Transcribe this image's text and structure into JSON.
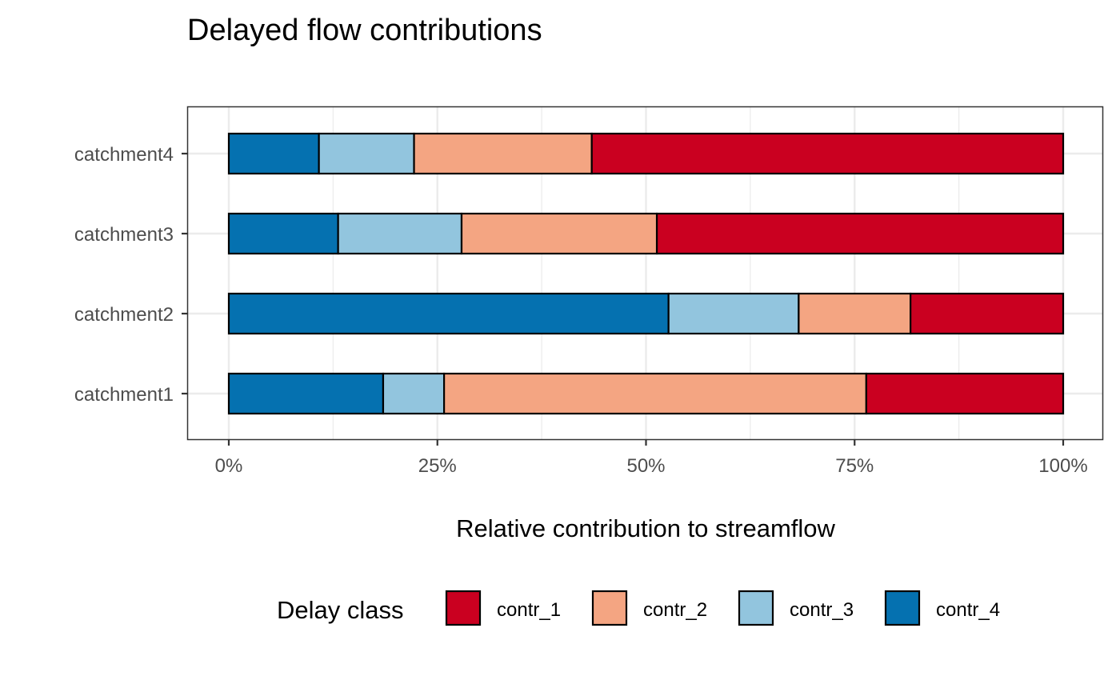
{
  "chart_data": {
    "type": "bar",
    "orientation": "horizontal",
    "stacked": true,
    "normalized": true,
    "title": "Delayed flow contributions",
    "xlabel": "Relative contribution to streamflow",
    "ylabel": "",
    "xlim": [
      0,
      1
    ],
    "x_ticks": [
      "0%",
      "25%",
      "50%",
      "75%",
      "100%"
    ],
    "x_tick_values": [
      0,
      0.25,
      0.5,
      0.75,
      1.0
    ],
    "categories": [
      "catchment1",
      "catchment2",
      "catchment3",
      "catchment4"
    ],
    "legend": {
      "title": "Delay class",
      "placement": "bottom",
      "entries": [
        "contr_1",
        "contr_2",
        "contr_3",
        "contr_4"
      ]
    },
    "grid": true,
    "series": [
      {
        "name": "contr_4",
        "color": "#0571b0",
        "values": [
          0.185,
          0.527,
          0.131,
          0.108
        ]
      },
      {
        "name": "contr_3",
        "color": "#92c5de",
        "values": [
          0.073,
          0.156,
          0.148,
          0.114
        ]
      },
      {
        "name": "contr_2",
        "color": "#f4a582",
        "values": [
          0.506,
          0.134,
          0.234,
          0.213
        ]
      },
      {
        "name": "contr_1",
        "color": "#ca0020",
        "values": [
          0.236,
          0.183,
          0.487,
          0.565
        ]
      }
    ]
  }
}
